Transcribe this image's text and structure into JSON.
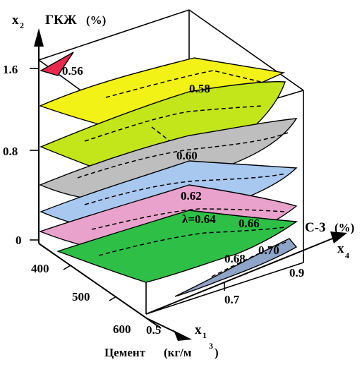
{
  "axes": {
    "x2": {
      "symbol": "x",
      "sub": "2",
      "name": "ГКЖ",
      "unit": "(%)",
      "ticks": [
        "1.6",
        "0.8",
        "0"
      ]
    },
    "x1": {
      "symbol": "x",
      "sub": "1",
      "name": "Цемент",
      "unit_prefix": "(кг/м",
      "unit_sup": "3",
      "unit_suffix": ")",
      "ticks": [
        "400",
        "500",
        "600"
      ]
    },
    "x4": {
      "symbol": "x",
      "sub": "4",
      "name": "С-3",
      "unit": "(%)",
      "ticks": [
        "0.5",
        "0.7",
        "0.9"
      ]
    }
  },
  "surfaces": [
    {
      "label": "0.56",
      "color": "#e8284e"
    },
    {
      "label": "0.58",
      "color": "#f2f216"
    },
    {
      "label": "0.58",
      "color": "#c2e61a"
    },
    {
      "label": "0.60",
      "color": "#bebebe"
    },
    {
      "label": "0.62",
      "color": "#a8c8f0"
    },
    {
      "label": "λ=0.64",
      "color": "#e8a2cc"
    },
    {
      "label": "0.66",
      "color": "#2ec046"
    },
    {
      "label": "0.68",
      "color": "#8ea4c8"
    },
    {
      "label": "0.70",
      "color": "#8ea4c8"
    }
  ]
}
